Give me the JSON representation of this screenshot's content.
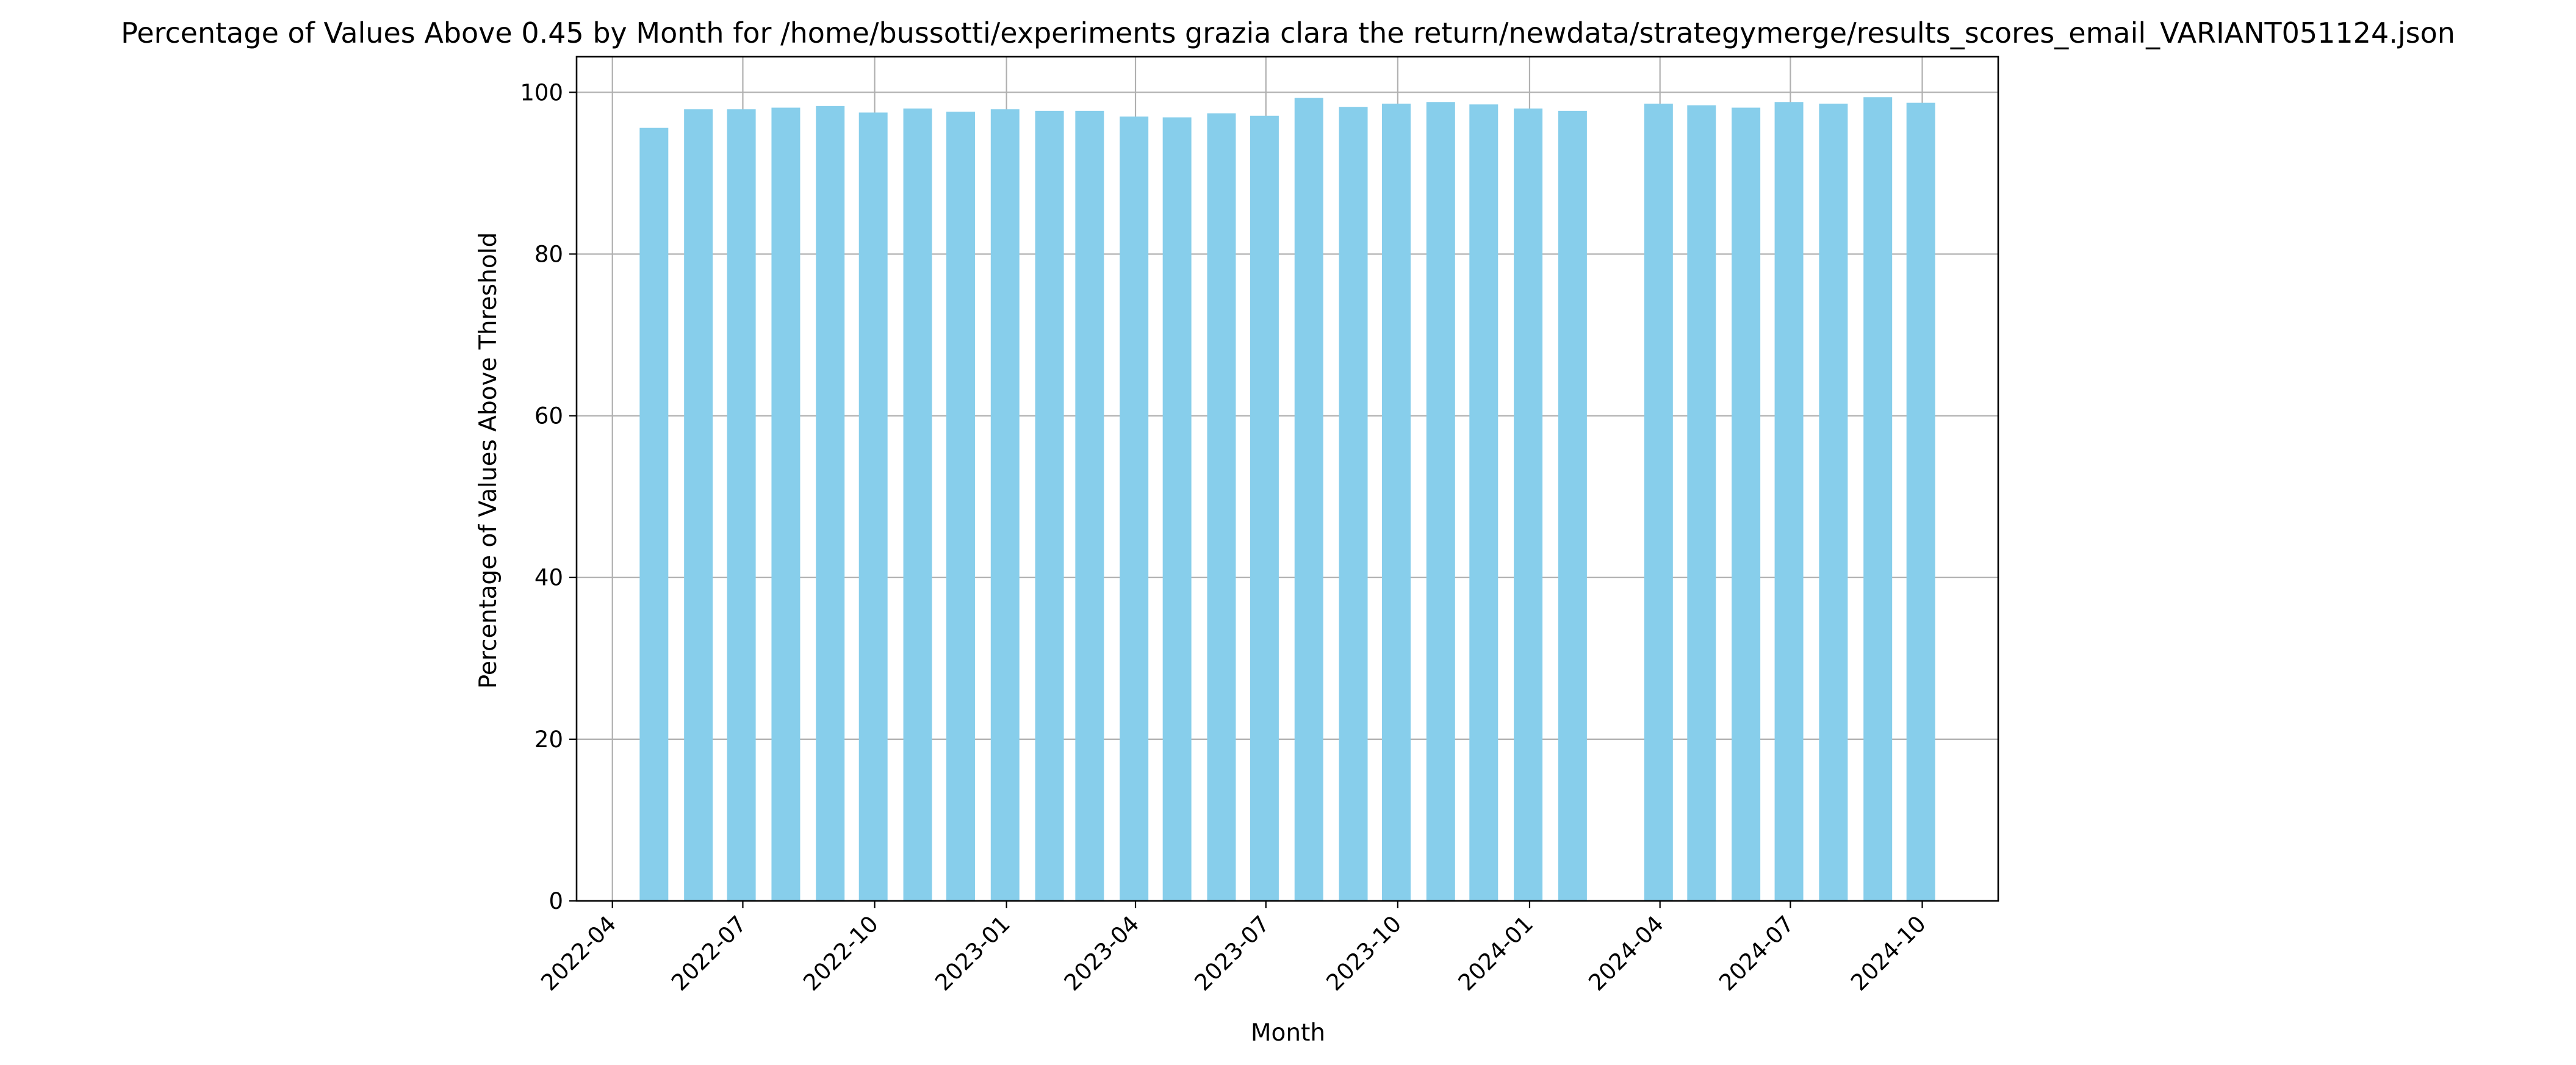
{
  "chart_data": {
    "type": "bar",
    "title": "Percentage of Values Above 0.45 by Month for /home/bussotti/experiments grazia clara the return/newdata/strategymerge/results_scores_email_VARIANT051124.json",
    "xlabel": "Month",
    "ylabel": "Percentage of Values Above Threshold",
    "x_axis_type": "date",
    "xlim": [
      "2022-03-07",
      "2024-11-23"
    ],
    "ylim": [
      0,
      104.4
    ],
    "y_ticks": [
      0,
      20,
      40,
      60,
      80,
      100
    ],
    "x_ticks": [
      "2022-04",
      "2022-07",
      "2022-10",
      "2023-01",
      "2023-04",
      "2023-07",
      "2023-10",
      "2024-01",
      "2024-04",
      "2024-07",
      "2024-10"
    ],
    "grid": true,
    "bar_color": "#87CEEB",
    "bars": [
      {
        "x": "2022-04-30",
        "value": 95.6
      },
      {
        "x": "2022-05-31",
        "value": 97.9
      },
      {
        "x": "2022-06-30",
        "value": 97.9
      },
      {
        "x": "2022-07-31",
        "value": 98.1
      },
      {
        "x": "2022-08-31",
        "value": 98.3
      },
      {
        "x": "2022-09-30",
        "value": 97.5
      },
      {
        "x": "2022-10-31",
        "value": 98.0
      },
      {
        "x": "2022-11-30",
        "value": 97.6
      },
      {
        "x": "2022-12-31",
        "value": 97.9
      },
      {
        "x": "2023-01-31",
        "value": 97.7
      },
      {
        "x": "2023-02-28",
        "value": 97.7
      },
      {
        "x": "2023-03-31",
        "value": 97.0
      },
      {
        "x": "2023-04-30",
        "value": 96.9
      },
      {
        "x": "2023-05-31",
        "value": 97.4
      },
      {
        "x": "2023-06-30",
        "value": 97.1
      },
      {
        "x": "2023-07-31",
        "value": 99.3
      },
      {
        "x": "2023-08-31",
        "value": 98.2
      },
      {
        "x": "2023-09-30",
        "value": 98.6
      },
      {
        "x": "2023-10-31",
        "value": 98.8
      },
      {
        "x": "2023-11-30",
        "value": 98.5
      },
      {
        "x": "2023-12-31",
        "value": 98.0
      },
      {
        "x": "2024-01-31",
        "value": 97.7
      },
      {
        "x": "2024-03-31",
        "value": 98.6
      },
      {
        "x": "2024-04-30",
        "value": 98.4
      },
      {
        "x": "2024-05-31",
        "value": 98.1
      },
      {
        "x": "2024-06-30",
        "value": 98.8
      },
      {
        "x": "2024-07-31",
        "value": 98.6
      },
      {
        "x": "2024-08-31",
        "value": 99.4
      },
      {
        "x": "2024-09-30",
        "value": 98.7
      }
    ]
  }
}
